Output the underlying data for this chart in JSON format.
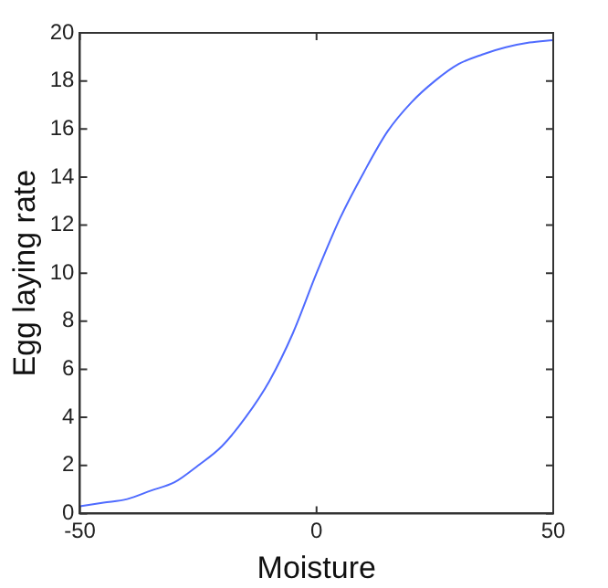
{
  "chart_data": {
    "type": "line",
    "xlabel": "Moisture",
    "ylabel": "Egg laying rate",
    "x": [
      -50,
      -45,
      -40,
      -35,
      -30,
      -25,
      -20,
      -15,
      -10,
      -5,
      0,
      5,
      10,
      15,
      20,
      25,
      30,
      35,
      40,
      45,
      50
    ],
    "series": [
      {
        "color": "#4f6bff",
        "values": [
          0.3,
          0.45,
          0.6,
          0.95,
          1.3,
          2.0,
          2.8,
          4.0,
          5.5,
          7.5,
          10.0,
          12.3,
          14.2,
          15.9,
          17.1,
          18.0,
          18.7,
          19.1,
          19.4,
          19.6,
          19.7
        ]
      }
    ],
    "xlim": [
      -50,
      50
    ],
    "xticks": [
      -50,
      0,
      50
    ],
    "ylim": [
      0,
      20
    ],
    "yticks": [
      0,
      2,
      4,
      6,
      8,
      10,
      12,
      14,
      16,
      18,
      20
    ],
    "grid": false,
    "legend": false,
    "marker": "none",
    "line_style": "solid"
  }
}
